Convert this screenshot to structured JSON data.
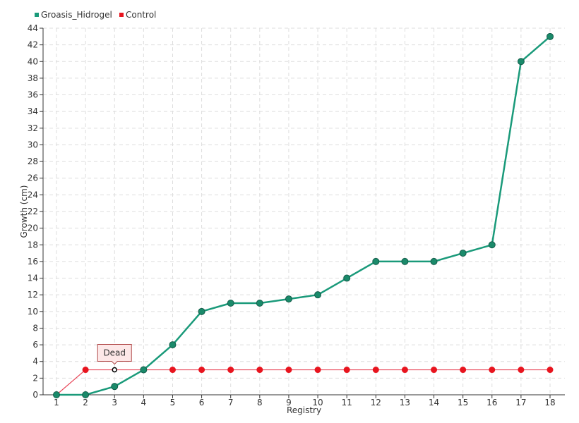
{
  "chart_data": {
    "type": "line",
    "title": "",
    "xlabel": "Registry",
    "ylabel": "Growth (cm)",
    "x": [
      1,
      2,
      3,
      4,
      5,
      6,
      7,
      8,
      9,
      10,
      11,
      12,
      13,
      14,
      15,
      16,
      17,
      18
    ],
    "ylim": [
      0,
      44
    ],
    "ytick_step": 2,
    "grid": true,
    "legend_position": "top-left",
    "series": [
      {
        "name": "Groasis_Hidrogel",
        "color": "#1a9a7a",
        "marker_color": "#1a8a6a",
        "values": [
          0,
          0,
          1,
          3,
          6,
          10,
          11,
          11,
          11.5,
          12,
          14,
          16,
          16,
          16,
          17,
          18,
          40,
          43
        ]
      },
      {
        "name": "Control",
        "color": "#e8485a",
        "marker_color": "#e8141e",
        "values": [
          0,
          3,
          3,
          3,
          3,
          3,
          3,
          3,
          3,
          3,
          3,
          3,
          3,
          3,
          3,
          3,
          3,
          3
        ]
      }
    ],
    "annotation": {
      "text": "Dead",
      "series": "Control",
      "x": 3,
      "y": 3
    }
  }
}
